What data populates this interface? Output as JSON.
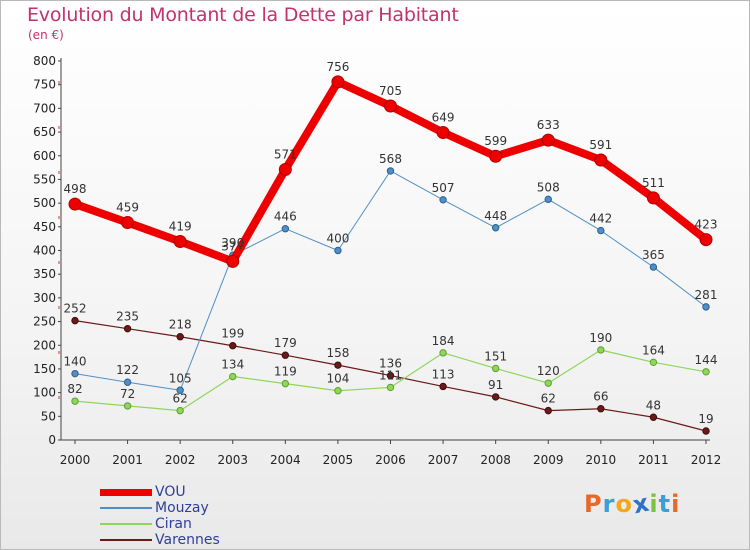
{
  "title": "Evolution du Montant de la Dette par Habitant",
  "subtitle": "(en €)",
  "logo": {
    "text": "Proxiti"
  },
  "chart_data": {
    "type": "line",
    "title": "Evolution du Montant de la Dette par Habitant",
    "subtitle": "(en €)",
    "xlabel": "",
    "ylabel": "",
    "x": [
      "2000",
      "2001",
      "2002",
      "2003",
      "2004",
      "2005",
      "2006",
      "2007",
      "2008",
      "2009",
      "2010",
      "2011",
      "2012"
    ],
    "ylim": [
      0,
      800
    ],
    "yticks": [
      0,
      50,
      100,
      150,
      200,
      250,
      300,
      350,
      400,
      450,
      500,
      550,
      600,
      650,
      700,
      750,
      800
    ],
    "grid": false,
    "legend_position": "bottom-left",
    "series": [
      {
        "name": "VOU",
        "color": "#ee0000",
        "values": [
          498,
          459,
          419,
          377,
          571,
          756,
          705,
          649,
          599,
          633,
          591,
          511,
          423
        ]
      },
      {
        "name": "Mouzay",
        "color": "#4f8fc8",
        "values": [
          140,
          122,
          105,
          390,
          446,
          400,
          568,
          507,
          448,
          508,
          442,
          365,
          281
        ]
      },
      {
        "name": "Ciran",
        "color": "#8fd65a",
        "values": [
          82,
          72,
          62,
          134,
          119,
          104,
          111,
          184,
          151,
          120,
          190,
          164,
          144
        ]
      },
      {
        "name": "Varennes",
        "color": "#6b1a1a",
        "values": [
          252,
          235,
          218,
          199,
          179,
          158,
          136,
          113,
          91,
          62,
          66,
          48,
          19
        ]
      }
    ]
  }
}
